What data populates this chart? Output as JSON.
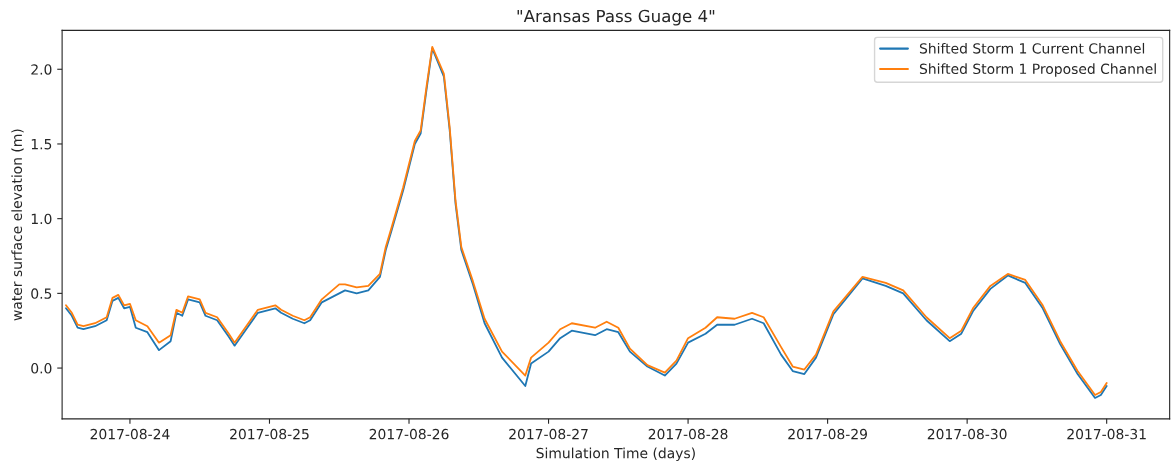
{
  "chart_data": {
    "type": "line",
    "title": "\"Aransas Pass Guage 4\"",
    "xlabel": "Simulation Time (days)",
    "ylabel": "water surface elevation (m)",
    "x": [
      "2017-08-23T13:00",
      "2017-08-23T14:00",
      "2017-08-23T15:00",
      "2017-08-23T16:00",
      "2017-08-23T18:00",
      "2017-08-23T20:00",
      "2017-08-23T21:00",
      "2017-08-23T22:00",
      "2017-08-23T23:00",
      "2017-08-24T00:00",
      "2017-08-24T01:00",
      "2017-08-24T03:00",
      "2017-08-24T05:00",
      "2017-08-24T07:00",
      "2017-08-24T08:00",
      "2017-08-24T09:00",
      "2017-08-24T10:00",
      "2017-08-24T12:00",
      "2017-08-24T13:00",
      "2017-08-24T15:00",
      "2017-08-24T17:00",
      "2017-08-24T18:00",
      "2017-08-24T20:00",
      "2017-08-24T22:00",
      "2017-08-25T01:00",
      "2017-08-25T02:00",
      "2017-08-25T04:00",
      "2017-08-25T06:00",
      "2017-08-25T07:00",
      "2017-08-25T09:00",
      "2017-08-25T12:00",
      "2017-08-25T13:00",
      "2017-08-25T15:00",
      "2017-08-25T17:00",
      "2017-08-25T19:00",
      "2017-08-25T20:00",
      "2017-08-25T21:00",
      "2017-08-25T23:00",
      "2017-08-26T01:00",
      "2017-08-26T02:00",
      "2017-08-26T03:00",
      "2017-08-26T04:00",
      "2017-08-26T06:00",
      "2017-08-26T07:00",
      "2017-08-26T08:00",
      "2017-08-26T09:00",
      "2017-08-26T11:00",
      "2017-08-26T13:00",
      "2017-08-26T16:00",
      "2017-08-26T20:00",
      "2017-08-26T21:00",
      "2017-08-27T00:00",
      "2017-08-27T02:00",
      "2017-08-27T04:00",
      "2017-08-27T08:00",
      "2017-08-27T10:00",
      "2017-08-27T12:00",
      "2017-08-27T14:00",
      "2017-08-27T17:00",
      "2017-08-27T20:00",
      "2017-08-27T22:00",
      "2017-08-28T00:00",
      "2017-08-28T03:00",
      "2017-08-28T05:00",
      "2017-08-28T08:00",
      "2017-08-28T11:00",
      "2017-08-28T13:00",
      "2017-08-28T16:00",
      "2017-08-28T18:00",
      "2017-08-28T20:00",
      "2017-08-28T22:00",
      "2017-08-29T01:00",
      "2017-08-29T06:00",
      "2017-08-29T10:00",
      "2017-08-29T13:00",
      "2017-08-29T17:00",
      "2017-08-29T21:00",
      "2017-08-29T23:00",
      "2017-08-30T01:00",
      "2017-08-30T04:00",
      "2017-08-30T07:00",
      "2017-08-30T10:00",
      "2017-08-30T13:00",
      "2017-08-30T16:00",
      "2017-08-30T19:00",
      "2017-08-30T22:00",
      "2017-08-30T23:00",
      "2017-08-31T00:00"
    ],
    "series": [
      {
        "name": "Shifted Storm 1 Current Channel",
        "color": "#1f77b4",
        "values": [
          0.4,
          0.35,
          0.27,
          0.26,
          0.28,
          0.32,
          0.45,
          0.47,
          0.4,
          0.41,
          0.27,
          0.24,
          0.12,
          0.18,
          0.37,
          0.35,
          0.46,
          0.44,
          0.35,
          0.32,
          0.21,
          0.15,
          0.26,
          0.37,
          0.4,
          0.37,
          0.33,
          0.3,
          0.32,
          0.44,
          0.5,
          0.52,
          0.5,
          0.52,
          0.61,
          0.79,
          0.92,
          1.19,
          1.5,
          1.57,
          1.86,
          2.14,
          1.95,
          1.59,
          1.1,
          0.79,
          0.56,
          0.3,
          0.07,
          -0.12,
          0.03,
          0.11,
          0.2,
          0.25,
          0.22,
          0.26,
          0.24,
          0.11,
          0.01,
          -0.05,
          0.03,
          0.17,
          0.23,
          0.29,
          0.29,
          0.33,
          0.3,
          0.09,
          -0.02,
          -0.04,
          0.07,
          0.36,
          0.6,
          0.55,
          0.5,
          0.32,
          0.18,
          0.23,
          0.38,
          0.53,
          0.62,
          0.57,
          0.4,
          0.16,
          -0.04,
          -0.2,
          -0.18,
          -0.12
        ]
      },
      {
        "name": "Shifted Storm 1 Proposed Channel",
        "color": "#ff7f0e",
        "values": [
          0.42,
          0.37,
          0.29,
          0.28,
          0.3,
          0.34,
          0.47,
          0.49,
          0.42,
          0.43,
          0.32,
          0.28,
          0.17,
          0.22,
          0.39,
          0.37,
          0.48,
          0.46,
          0.37,
          0.34,
          0.23,
          0.17,
          0.28,
          0.39,
          0.42,
          0.39,
          0.35,
          0.32,
          0.34,
          0.46,
          0.56,
          0.56,
          0.54,
          0.55,
          0.63,
          0.81,
          0.94,
          1.21,
          1.52,
          1.59,
          1.88,
          2.15,
          1.97,
          1.61,
          1.12,
          0.81,
          0.58,
          0.33,
          0.11,
          -0.05,
          0.07,
          0.17,
          0.26,
          0.3,
          0.27,
          0.31,
          0.27,
          0.13,
          0.02,
          -0.03,
          0.05,
          0.2,
          0.27,
          0.34,
          0.33,
          0.37,
          0.34,
          0.14,
          0.01,
          -0.01,
          0.09,
          0.38,
          0.61,
          0.57,
          0.52,
          0.34,
          0.2,
          0.25,
          0.4,
          0.55,
          0.63,
          0.59,
          0.42,
          0.18,
          -0.02,
          -0.18,
          -0.16,
          -0.1
        ]
      }
    ],
    "xlim": [
      "2017-08-23T12:20",
      "2017-08-31T10:50"
    ],
    "xticks": [
      "2017-08-24",
      "2017-08-25",
      "2017-08-26",
      "2017-08-27",
      "2017-08-28",
      "2017-08-29",
      "2017-08-30",
      "2017-08-31"
    ],
    "ylim": [
      -0.34,
      2.26
    ],
    "yticks": [
      {
        "value": 0,
        "label": "0.0"
      },
      {
        "value": 0.5,
        "label": "0.5"
      },
      {
        "value": 1,
        "label": "1.0"
      },
      {
        "value": 1.5,
        "label": "1.5"
      },
      {
        "value": 2,
        "label": "2.0"
      }
    ],
    "legend": "top right",
    "grid": false
  }
}
